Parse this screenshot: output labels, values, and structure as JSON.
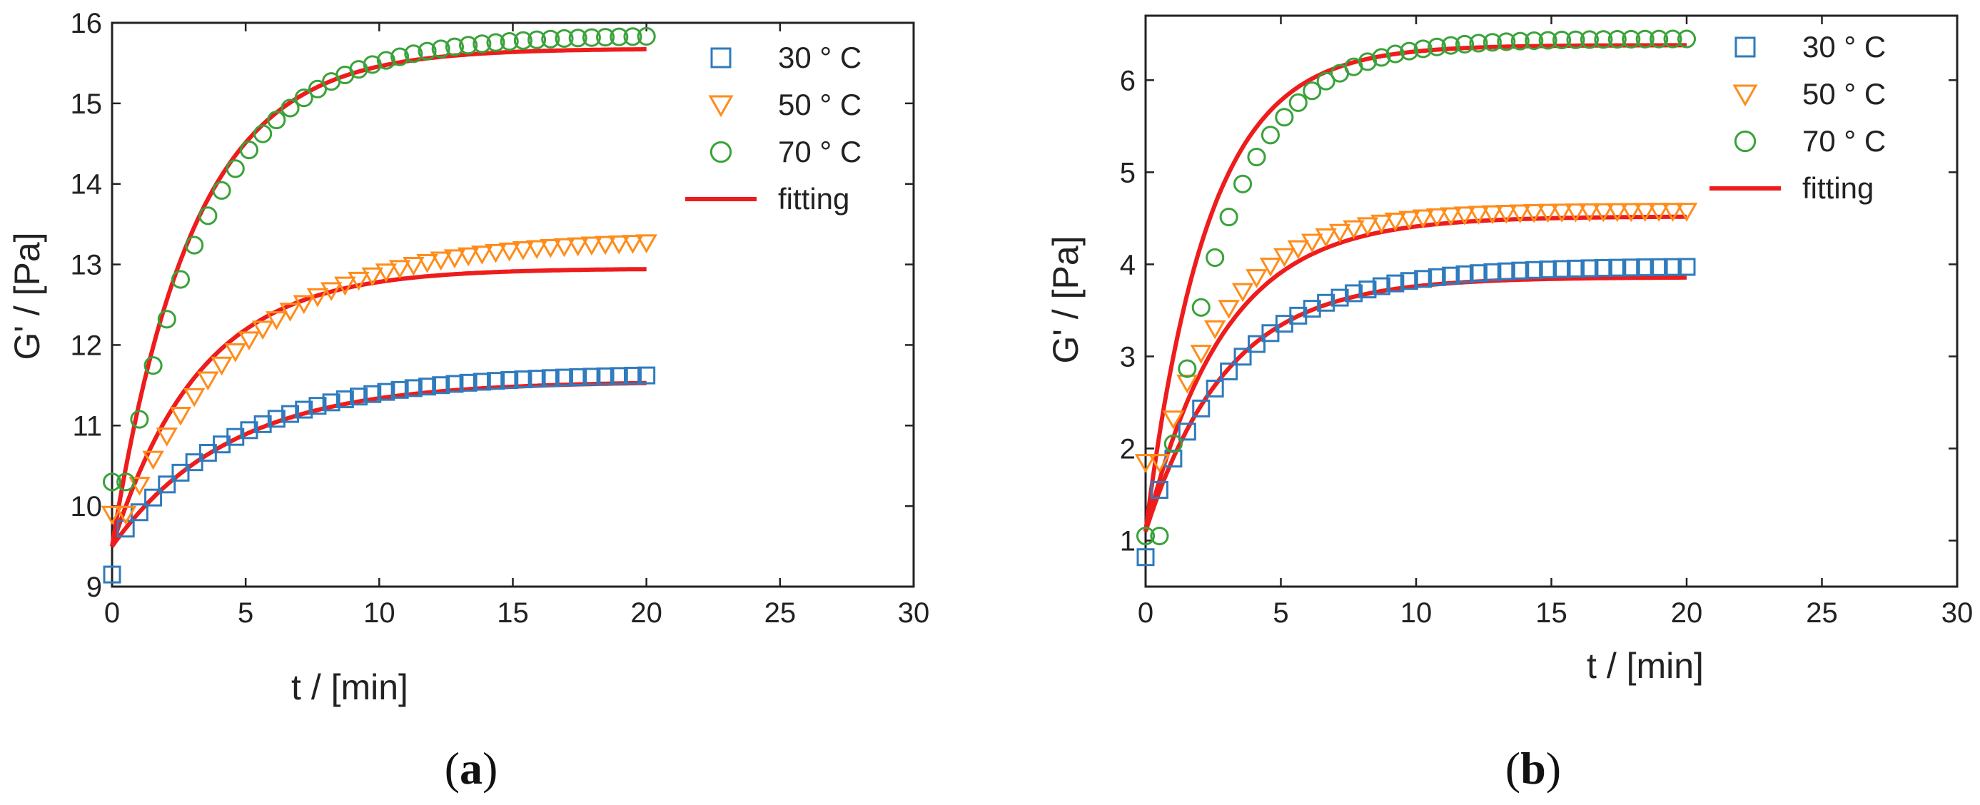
{
  "colors": {
    "c30": "#2f7bbd",
    "c50": "#ff8c1a",
    "c70": "#3aa23a",
    "fit": "#ee1c1c",
    "axis": "#222222"
  },
  "chart_data": [
    {
      "type": "scatter",
      "panel": "a",
      "panel_label": "a",
      "xlabel": "t / [min]",
      "ylabel": "G' / [Pa]",
      "xlim": [
        0,
        30
      ],
      "ylim": [
        9,
        16
      ],
      "xticks": [
        0,
        5,
        10,
        15,
        20,
        25,
        30
      ],
      "yticks": [
        9,
        10,
        11,
        12,
        13,
        14,
        15,
        16
      ],
      "legend_position": "top-right",
      "legend": [
        "30 ° C",
        "50 ° C",
        "70 ° C",
        "fitting"
      ],
      "series": [
        {
          "name": "30 ° C",
          "marker": "square",
          "color_key": "c30",
          "t_end": 20,
          "n": 40,
          "y0": 9.15,
          "first_step_value": 9.72,
          "plateau": 11.65,
          "tau": 4.6
        },
        {
          "name": "50 ° C",
          "marker": "triangle-down",
          "color_key": "c50",
          "t_end": 20,
          "n": 40,
          "y0": 9.9,
          "plateau": 13.32,
          "tau": 4.6
        },
        {
          "name": "70 ° C",
          "marker": "circle",
          "color_key": "c70",
          "t_end": 20,
          "n": 40,
          "y0": 10.3,
          "plateau": 15.85,
          "tau": 3.4
        }
      ],
      "fits": [
        {
          "name": "fitting 30 ° C",
          "y0": 9.5,
          "plateau": 11.55,
          "tau": 4.4,
          "t_end": 20
        },
        {
          "name": "fitting 50 ° C",
          "y0": 9.5,
          "plateau": 12.95,
          "tau": 3.3,
          "t_end": 20
        },
        {
          "name": "fitting 70 ° C",
          "y0": 9.5,
          "plateau": 15.68,
          "tau": 3.0,
          "t_end": 20
        }
      ]
    },
    {
      "type": "scatter",
      "panel": "b",
      "panel_label": "b",
      "xlabel": "t / [min]",
      "ylabel": "G' / [Pa]",
      "xlim": [
        0,
        30
      ],
      "ylim": [
        0.5,
        6.7
      ],
      "xticks": [
        0,
        5,
        10,
        15,
        20,
        25,
        30
      ],
      "yticks": [
        1,
        2,
        3,
        4,
        5,
        6
      ],
      "legend_position": "top-right",
      "legend": [
        "30 ° C",
        "50 ° C",
        "70 ° C",
        "fitting"
      ],
      "series": [
        {
          "name": "30 ° C",
          "marker": "square",
          "color_key": "c30",
          "t_end": 20,
          "n": 40,
          "y0": 0.82,
          "first_step_value": 1.55,
          "plateau": 3.98,
          "tau": 3.4
        },
        {
          "name": "50 ° C",
          "marker": "triangle-down",
          "color_key": "c50",
          "t_end": 20,
          "n": 40,
          "y0": 1.85,
          "plateau": 4.58,
          "tau": 2.7
        },
        {
          "name": "70 ° C",
          "marker": "circle",
          "color_key": "c70",
          "t_end": 20,
          "n": 40,
          "y0": 1.05,
          "plateau": 6.45,
          "tau": 2.5
        }
      ],
      "fits": [
        {
          "name": "fitting 30 ° C",
          "y0": 1.1,
          "plateau": 3.86,
          "tau": 3.0,
          "t_end": 20
        },
        {
          "name": "fitting 50 ° C",
          "y0": 1.1,
          "plateau": 4.52,
          "tau": 2.9,
          "t_end": 20
        },
        {
          "name": "fitting 70 ° C",
          "y0": 1.1,
          "plateau": 6.38,
          "tau": 2.3,
          "t_end": 20
        }
      ]
    }
  ]
}
